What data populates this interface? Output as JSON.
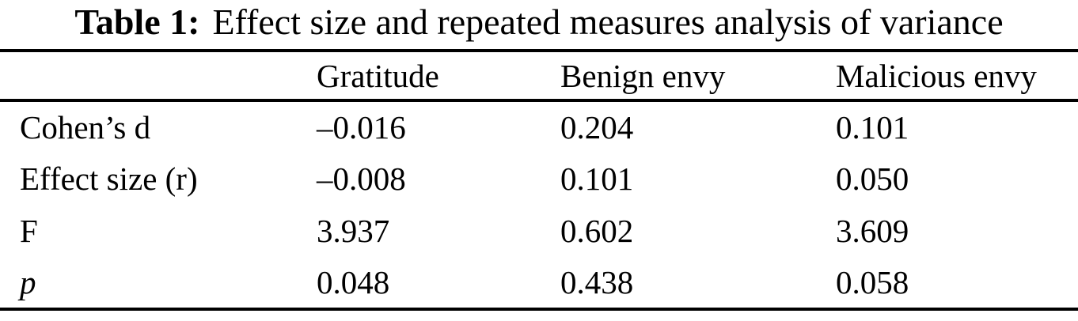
{
  "caption": {
    "label": "Table 1:",
    "text": "Effect size and repeated measures analysis of variance"
  },
  "table": {
    "columns": [
      "",
      "Gratitude",
      "Benign envy",
      "Malicious envy"
    ],
    "rows": [
      {
        "label": "Cohen’s d",
        "values": [
          "–0.016",
          "0.204",
          "0.101"
        ]
      },
      {
        "label": "Effect size (r)",
        "values": [
          "–0.008",
          "0.101",
          "0.050"
        ]
      },
      {
        "label": "F",
        "values": [
          "3.937",
          "0.602",
          "3.609"
        ]
      },
      {
        "label": "p",
        "values": [
          "0.048",
          "0.438",
          "0.058"
        ]
      }
    ]
  },
  "chart_data": {
    "type": "table",
    "title": "Table 1: Effect size and repeated measures analysis of variance",
    "columns": [
      "",
      "Gratitude",
      "Benign envy",
      "Malicious envy"
    ],
    "rows": [
      [
        "Cohen’s d",
        "–0.016",
        "0.204",
        "0.101"
      ],
      [
        "Effect size (r)",
        "–0.008",
        "0.101",
        "0.050"
      ],
      [
        "F",
        "3.937",
        "0.602",
        "3.609"
      ],
      [
        "p",
        "0.048",
        "0.438",
        "0.058"
      ]
    ]
  },
  "colors": {
    "background": "#ffffff",
    "text": "#000000",
    "rule": "#000000"
  }
}
